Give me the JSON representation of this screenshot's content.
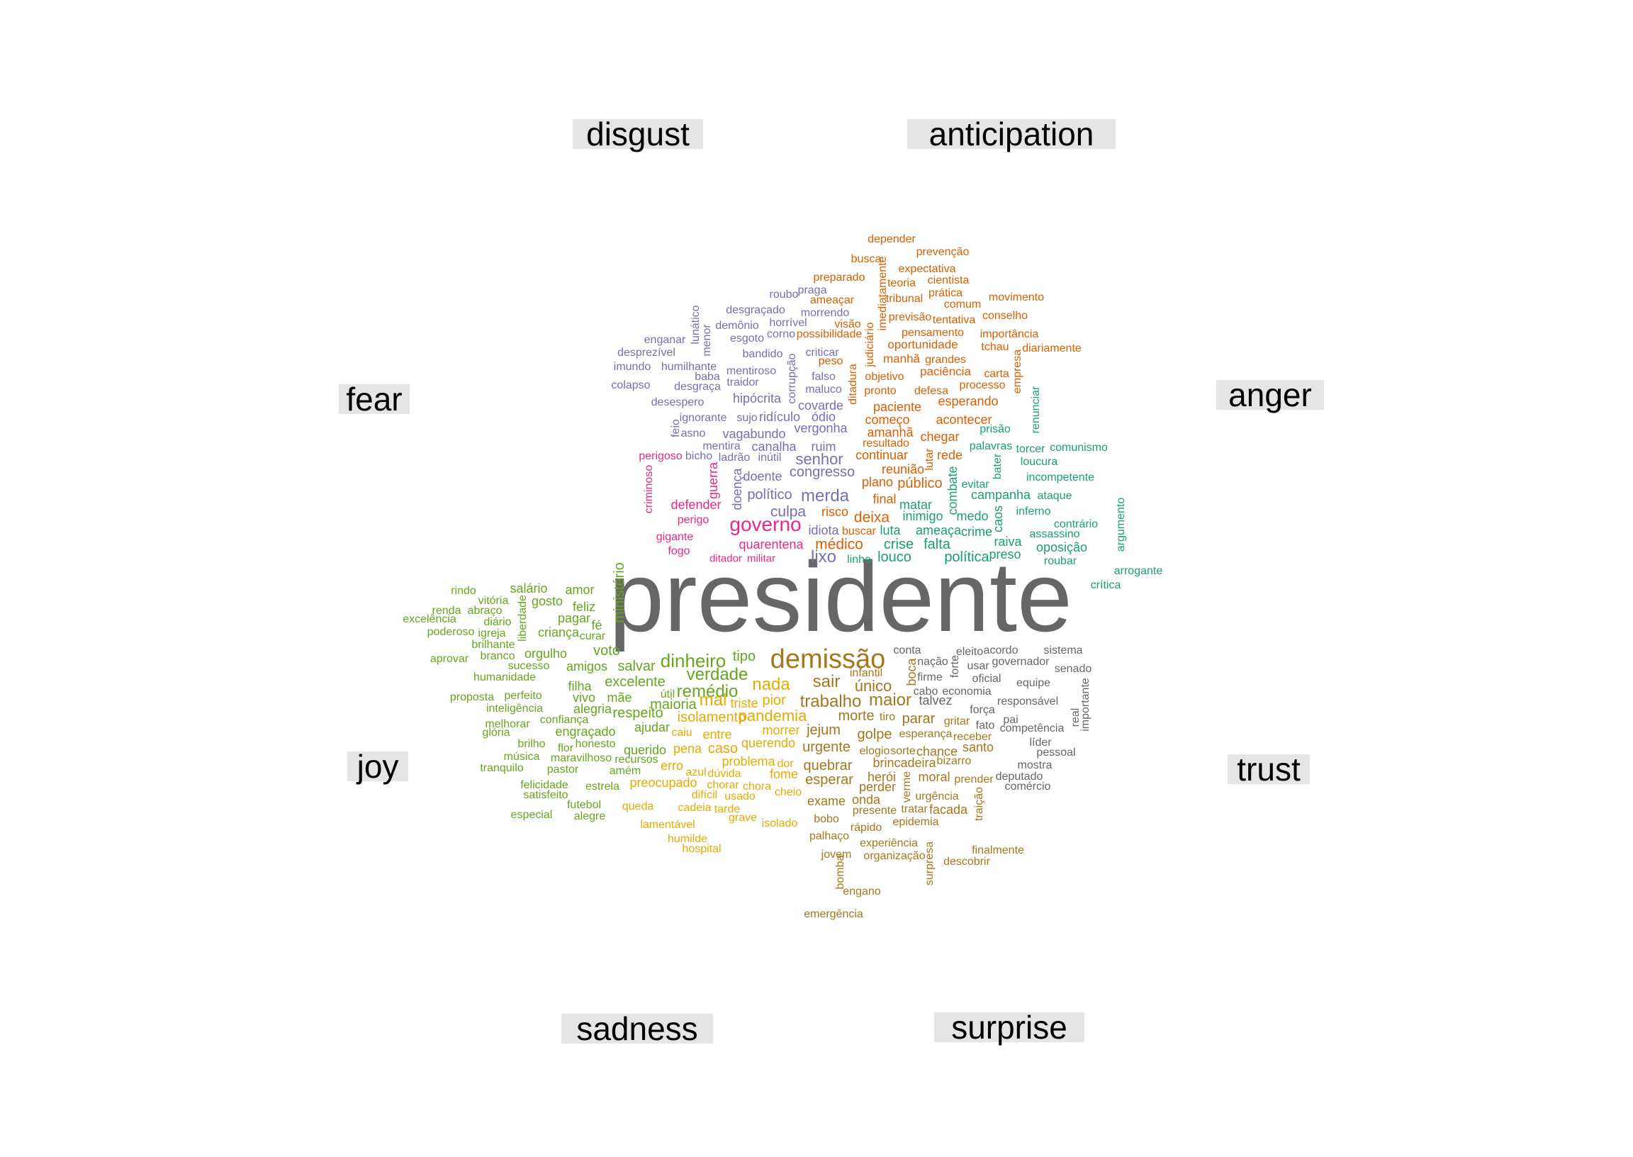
{
  "categories": {
    "disgust": "disgust",
    "anticipation": "anticipation",
    "fear": "fear",
    "anger": "anger",
    "joy": "joy",
    "trust": "trust",
    "sadness": "sadness",
    "surprise": "surprise"
  },
  "colors": {
    "center": "#666666",
    "anticipation": "#d95f02",
    "disgust": "#7570b3",
    "fear": "#e7298a",
    "anger": "#1b9e77",
    "joy": "#66a61e",
    "sadness": "#e6ab02",
    "surprise": "#a6761d",
    "trust": "#666666"
  },
  "words": [
    {
      "t": "presidente",
      "c": "center"
    },
    {
      "t": "depender",
      "c": "anticipation"
    },
    {
      "t": "busca",
      "c": "anticipation"
    },
    {
      "t": "prevenção",
      "c": "anticipation"
    },
    {
      "t": "preparado",
      "c": "anticipation"
    },
    {
      "t": "expectativa",
      "c": "anticipation"
    },
    {
      "t": "teoria",
      "c": "anticipation"
    },
    {
      "t": "cientista",
      "c": "anticipation"
    },
    {
      "t": "imediatamente",
      "c": "anticipation"
    },
    {
      "t": "ameaçar",
      "c": "anticipation"
    },
    {
      "t": "tribunal",
      "c": "anticipation"
    },
    {
      "t": "prática",
      "c": "anticipation"
    },
    {
      "t": "movimento",
      "c": "anticipation"
    },
    {
      "t": "comum",
      "c": "anticipation"
    },
    {
      "t": "visão",
      "c": "anticipation"
    },
    {
      "t": "previsão",
      "c": "anticipation"
    },
    {
      "t": "tentativa",
      "c": "anticipation"
    },
    {
      "t": "conselho",
      "c": "anticipation"
    },
    {
      "t": "possibilidade",
      "c": "anticipation"
    },
    {
      "t": "pensamento",
      "c": "anticipation"
    },
    {
      "t": "importância",
      "c": "anticipation"
    },
    {
      "t": "judiciário",
      "c": "anticipation"
    },
    {
      "t": "oportunidade",
      "c": "anticipation"
    },
    {
      "t": "tchau",
      "c": "anticipation"
    },
    {
      "t": "diariamente",
      "c": "anticipation"
    },
    {
      "t": "peso",
      "c": "anticipation"
    },
    {
      "t": "manhã",
      "c": "anticipation"
    },
    {
      "t": "grandes",
      "c": "anticipation"
    },
    {
      "t": "ditadura",
      "c": "anticipation"
    },
    {
      "t": "objetivo",
      "c": "anticipation"
    },
    {
      "t": "paciência",
      "c": "anticipation"
    },
    {
      "t": "carta",
      "c": "anticipation"
    },
    {
      "t": "empresa",
      "c": "anticipation"
    },
    {
      "t": "pronto",
      "c": "anticipation"
    },
    {
      "t": "defesa",
      "c": "anticipation"
    },
    {
      "t": "processo",
      "c": "anticipation"
    },
    {
      "t": "paciente",
      "c": "anticipation"
    },
    {
      "t": "esperando",
      "c": "anticipation"
    },
    {
      "t": "começo",
      "c": "anticipation"
    },
    {
      "t": "acontecer",
      "c": "anticipation"
    },
    {
      "t": "amanhã",
      "c": "anticipation"
    },
    {
      "t": "chegar",
      "c": "anticipation"
    },
    {
      "t": "resultado",
      "c": "anticipation"
    },
    {
      "t": "continuar",
      "c": "anticipation"
    },
    {
      "t": "lutar",
      "c": "anticipation"
    },
    {
      "t": "rede",
      "c": "anticipation"
    },
    {
      "t": "reunião",
      "c": "anticipation"
    },
    {
      "t": "plano",
      "c": "anticipation"
    },
    {
      "t": "público",
      "c": "anticipation"
    },
    {
      "t": "final",
      "c": "anticipation"
    },
    {
      "t": "risco",
      "c": "anticipation"
    },
    {
      "t": "deixa",
      "c": "anticipation"
    },
    {
      "t": "buscar",
      "c": "anticipation"
    },
    {
      "t": "médico",
      "c": "anticipation"
    },
    {
      "t": "lunático",
      "c": "disgust"
    },
    {
      "t": "roubo",
      "c": "disgust"
    },
    {
      "t": "praga",
      "c": "disgust"
    },
    {
      "t": "desgraçado",
      "c": "disgust"
    },
    {
      "t": "morrendo",
      "c": "disgust"
    },
    {
      "t": "demônio",
      "c": "disgust"
    },
    {
      "t": "horrível",
      "c": "disgust"
    },
    {
      "t": "menor",
      "c": "disgust"
    },
    {
      "t": "enganar",
      "c": "disgust"
    },
    {
      "t": "esgoto",
      "c": "disgust"
    },
    {
      "t": "corno",
      "c": "disgust"
    },
    {
      "t": "desprezível",
      "c": "disgust"
    },
    {
      "t": "bandido",
      "c": "disgust"
    },
    {
      "t": "criticar",
      "c": "disgust"
    },
    {
      "t": "imundo",
      "c": "disgust"
    },
    {
      "t": "humilhante",
      "c": "disgust"
    },
    {
      "t": "corrupção",
      "c": "disgust"
    },
    {
      "t": "mentiroso",
      "c": "disgust"
    },
    {
      "t": "baba",
      "c": "disgust"
    },
    {
      "t": "falso",
      "c": "disgust"
    },
    {
      "t": "colapso",
      "c": "disgust"
    },
    {
      "t": "desgraça",
      "c": "disgust"
    },
    {
      "t": "traidor",
      "c": "disgust"
    },
    {
      "t": "maluco",
      "c": "disgust"
    },
    {
      "t": "desespero",
      "c": "disgust"
    },
    {
      "t": "hipócrita",
      "c": "disgust"
    },
    {
      "t": "covarde",
      "c": "disgust"
    },
    {
      "t": "ignorante",
      "c": "disgust"
    },
    {
      "t": "sujo",
      "c": "disgust"
    },
    {
      "t": "ridículo",
      "c": "disgust"
    },
    {
      "t": "ódio",
      "c": "disgust"
    },
    {
      "t": "feio",
      "c": "disgust"
    },
    {
      "t": "asno",
      "c": "disgust"
    },
    {
      "t": "vagabundo",
      "c": "disgust"
    },
    {
      "t": "vergonha",
      "c": "disgust"
    },
    {
      "t": "mentira",
      "c": "disgust"
    },
    {
      "t": "canalha",
      "c": "disgust"
    },
    {
      "t": "ruim",
      "c": "disgust"
    },
    {
      "t": "bicho",
      "c": "disgust"
    },
    {
      "t": "ladrão",
      "c": "disgust"
    },
    {
      "t": "inútil",
      "c": "disgust"
    },
    {
      "t": "senhor",
      "c": "disgust"
    },
    {
      "t": "doença",
      "c": "disgust"
    },
    {
      "t": "doente",
      "c": "disgust"
    },
    {
      "t": "congresso",
      "c": "disgust"
    },
    {
      "t": "político",
      "c": "disgust"
    },
    {
      "t": "merda",
      "c": "disgust"
    },
    {
      "t": "culpa",
      "c": "disgust"
    },
    {
      "t": "idiota",
      "c": "disgust"
    },
    {
      "t": "lixo",
      "c": "disgust"
    },
    {
      "t": "perigoso",
      "c": "fear"
    },
    {
      "t": "criminoso",
      "c": "fear"
    },
    {
      "t": "guerra",
      "c": "fear"
    },
    {
      "t": "defender",
      "c": "fear"
    },
    {
      "t": "perigo",
      "c": "fear"
    },
    {
      "t": "governo",
      "c": "fear"
    },
    {
      "t": "gigante",
      "c": "fear"
    },
    {
      "t": "quarentena",
      "c": "fear"
    },
    {
      "t": "fogo",
      "c": "fear"
    },
    {
      "t": "ditador",
      "c": "fear"
    },
    {
      "t": "militar",
      "c": "fear"
    },
    {
      "t": "renunciar",
      "c": "anger"
    },
    {
      "t": "prisão",
      "c": "anger"
    },
    {
      "t": "palavras",
      "c": "anger"
    },
    {
      "t": "torcer",
      "c": "anger"
    },
    {
      "t": "comunismo",
      "c": "anger"
    },
    {
      "t": "loucura",
      "c": "anger"
    },
    {
      "t": "bater",
      "c": "anger"
    },
    {
      "t": "combate",
      "c": "anger"
    },
    {
      "t": "incompetente",
      "c": "anger"
    },
    {
      "t": "evitar",
      "c": "anger"
    },
    {
      "t": "campanha",
      "c": "anger"
    },
    {
      "t": "ataque",
      "c": "anger"
    },
    {
      "t": "argumento",
      "c": "anger"
    },
    {
      "t": "matar",
      "c": "anger"
    },
    {
      "t": "inferno",
      "c": "anger"
    },
    {
      "t": "caos",
      "c": "anger"
    },
    {
      "t": "inimigo",
      "c": "anger"
    },
    {
      "t": "medo",
      "c": "anger"
    },
    {
      "t": "contrário",
      "c": "anger"
    },
    {
      "t": "ameaça",
      "c": "anger"
    },
    {
      "t": "crime",
      "c": "anger"
    },
    {
      "t": "assassino",
      "c": "anger"
    },
    {
      "t": "luta",
      "c": "anger"
    },
    {
      "t": "raiva",
      "c": "anger"
    },
    {
      "t": "oposição",
      "c": "anger"
    },
    {
      "t": "crise",
      "c": "anger"
    },
    {
      "t": "falta",
      "c": "anger"
    },
    {
      "t": "preso",
      "c": "anger"
    },
    {
      "t": "louco",
      "c": "anger"
    },
    {
      "t": "política",
      "c": "anger"
    },
    {
      "t": "linha",
      "c": "anger"
    },
    {
      "t": "roubar",
      "c": "anger"
    },
    {
      "t": "arrogante",
      "c": "anger"
    },
    {
      "t": "crítica",
      "c": "anger"
    },
    {
      "t": "ministério",
      "c": "joy"
    },
    {
      "t": "rindo",
      "c": "joy"
    },
    {
      "t": "salário",
      "c": "joy"
    },
    {
      "t": "amor",
      "c": "joy"
    },
    {
      "t": "vitória",
      "c": "joy"
    },
    {
      "t": "gosto",
      "c": "joy"
    },
    {
      "t": "renda",
      "c": "joy"
    },
    {
      "t": "abraço",
      "c": "joy"
    },
    {
      "t": "liberdade",
      "c": "joy"
    },
    {
      "t": "feliz",
      "c": "joy"
    },
    {
      "t": "excelência",
      "c": "joy"
    },
    {
      "t": "diário",
      "c": "joy"
    },
    {
      "t": "pagar",
      "c": "joy"
    },
    {
      "t": "fé",
      "c": "joy"
    },
    {
      "t": "poderoso",
      "c": "joy"
    },
    {
      "t": "igreja",
      "c": "joy"
    },
    {
      "t": "criança",
      "c": "joy"
    },
    {
      "t": "curar",
      "c": "joy"
    },
    {
      "t": "brilhante",
      "c": "joy"
    },
    {
      "t": "branco",
      "c": "joy"
    },
    {
      "t": "orgulho",
      "c": "joy"
    },
    {
      "t": "voto",
      "c": "joy"
    },
    {
      "t": "aprovar",
      "c": "joy"
    },
    {
      "t": "sucesso",
      "c": "joy"
    },
    {
      "t": "amigos",
      "c": "joy"
    },
    {
      "t": "salvar",
      "c": "joy"
    },
    {
      "t": "dinheiro",
      "c": "joy"
    },
    {
      "t": "tipo",
      "c": "joy"
    },
    {
      "t": "humanidade",
      "c": "joy"
    },
    {
      "t": "verdade",
      "c": "joy"
    },
    {
      "t": "excelente",
      "c": "joy"
    },
    {
      "t": "filha",
      "c": "joy"
    },
    {
      "t": "útil",
      "c": "joy"
    },
    {
      "t": "remédio",
      "c": "joy"
    },
    {
      "t": "proposta",
      "c": "joy"
    },
    {
      "t": "perfeito",
      "c": "joy"
    },
    {
      "t": "vivo",
      "c": "joy"
    },
    {
      "t": "mãe",
      "c": "joy"
    },
    {
      "t": "maioria",
      "c": "joy"
    },
    {
      "t": "inteligência",
      "c": "joy"
    },
    {
      "t": "alegria",
      "c": "joy"
    },
    {
      "t": "respeito",
      "c": "joy"
    },
    {
      "t": "confiança",
      "c": "joy"
    },
    {
      "t": "melhorar",
      "c": "joy"
    },
    {
      "t": "engraçado",
      "c": "joy"
    },
    {
      "t": "ajudar",
      "c": "joy"
    },
    {
      "t": "glória",
      "c": "joy"
    },
    {
      "t": "brilho",
      "c": "joy"
    },
    {
      "t": "honesto",
      "c": "joy"
    },
    {
      "t": "flor",
      "c": "joy"
    },
    {
      "t": "querido",
      "c": "joy"
    },
    {
      "t": "música",
      "c": "joy"
    },
    {
      "t": "maravilhoso",
      "c": "joy"
    },
    {
      "t": "recursos",
      "c": "joy"
    },
    {
      "t": "tranquilo",
      "c": "joy"
    },
    {
      "t": "pastor",
      "c": "joy"
    },
    {
      "t": "amém",
      "c": "joy"
    },
    {
      "t": "felicidade",
      "c": "joy"
    },
    {
      "t": "satisfeito",
      "c": "joy"
    },
    {
      "t": "estrela",
      "c": "joy"
    },
    {
      "t": "futebol",
      "c": "joy"
    },
    {
      "t": "especial",
      "c": "joy"
    },
    {
      "t": "alegre",
      "c": "joy"
    },
    {
      "t": "nada",
      "c": "sadness"
    },
    {
      "t": "mal",
      "c": "sadness"
    },
    {
      "t": "triste",
      "c": "sadness"
    },
    {
      "t": "pior",
      "c": "sadness"
    },
    {
      "t": "isolamento",
      "c": "sadness"
    },
    {
      "t": "pandemia",
      "c": "sadness"
    },
    {
      "t": "morrer",
      "c": "sadness"
    },
    {
      "t": "caiu",
      "c": "sadness"
    },
    {
      "t": "entre",
      "c": "sadness"
    },
    {
      "t": "pena",
      "c": "sadness"
    },
    {
      "t": "caso",
      "c": "sadness"
    },
    {
      "t": "querendo",
      "c": "sadness"
    },
    {
      "t": "erro",
      "c": "sadness"
    },
    {
      "t": "problema",
      "c": "sadness"
    },
    {
      "t": "dor",
      "c": "sadness"
    },
    {
      "t": "azul",
      "c": "sadness"
    },
    {
      "t": "dúvida",
      "c": "sadness"
    },
    {
      "t": "fome",
      "c": "sadness"
    },
    {
      "t": "preocupado",
      "c": "sadness"
    },
    {
      "t": "chorar",
      "c": "sadness"
    },
    {
      "t": "chora",
      "c": "sadness"
    },
    {
      "t": "difícil",
      "c": "sadness"
    },
    {
      "t": "usado",
      "c": "sadness"
    },
    {
      "t": "cheio",
      "c": "sadness"
    },
    {
      "t": "queda",
      "c": "sadness"
    },
    {
      "t": "cadeia",
      "c": "sadness"
    },
    {
      "t": "tarde",
      "c": "sadness"
    },
    {
      "t": "grave",
      "c": "sadness"
    },
    {
      "t": "isolado",
      "c": "sadness"
    },
    {
      "t": "lamentável",
      "c": "sadness"
    },
    {
      "t": "humilde",
      "c": "sadness"
    },
    {
      "t": "hospital",
      "c": "sadness"
    },
    {
      "t": "demissão",
      "c": "surprise"
    },
    {
      "t": "sair",
      "c": "surprise"
    },
    {
      "t": "trabalho",
      "c": "surprise"
    },
    {
      "t": "maior",
      "c": "surprise"
    },
    {
      "t": "único",
      "c": "surprise"
    },
    {
      "t": "boca",
      "c": "surprise"
    },
    {
      "t": "infantil",
      "c": "surprise"
    },
    {
      "t": "jejum",
      "c": "surprise"
    },
    {
      "t": "morte",
      "c": "surprise"
    },
    {
      "t": "tiro",
      "c": "surprise"
    },
    {
      "t": "parar",
      "c": "surprise"
    },
    {
      "t": "golpe",
      "c": "surprise"
    },
    {
      "t": "urgente",
      "c": "surprise"
    },
    {
      "t": "elogio",
      "c": "surprise"
    },
    {
      "t": "sorte",
      "c": "surprise"
    },
    {
      "t": "quebrar",
      "c": "surprise"
    },
    {
      "t": "brincadeira",
      "c": "surprise"
    },
    {
      "t": "esperar",
      "c": "surprise"
    },
    {
      "t": "herói",
      "c": "surprise"
    },
    {
      "t": "moral",
      "c": "surprise"
    },
    {
      "t": "perder",
      "c": "surprise"
    },
    {
      "t": "verme",
      "c": "surprise"
    },
    {
      "t": "exame",
      "c": "surprise"
    },
    {
      "t": "onda",
      "c": "surprise"
    },
    {
      "t": "presente",
      "c": "surprise"
    },
    {
      "t": "tratar",
      "c": "surprise"
    },
    {
      "t": "facada",
      "c": "surprise"
    },
    {
      "t": "traição",
      "c": "surprise"
    },
    {
      "t": "bobo",
      "c": "surprise"
    },
    {
      "t": "rápido",
      "c": "surprise"
    },
    {
      "t": "epidemia",
      "c": "surprise"
    },
    {
      "t": "palhaço",
      "c": "surprise"
    },
    {
      "t": "experiência",
      "c": "surprise"
    },
    {
      "t": "surpresa",
      "c": "surprise"
    },
    {
      "t": "jovem",
      "c": "surprise"
    },
    {
      "t": "organização",
      "c": "surprise"
    },
    {
      "t": "descobrir",
      "c": "surprise"
    },
    {
      "t": "finalmente",
      "c": "surprise"
    },
    {
      "t": "bomba",
      "c": "surprise"
    },
    {
      "t": "engano",
      "c": "surprise"
    },
    {
      "t": "emergência",
      "c": "surprise"
    },
    {
      "t": "urgência",
      "c": "surprise"
    },
    {
      "t": "esperança",
      "c": "surprise"
    },
    {
      "t": "gritar",
      "c": "surprise"
    },
    {
      "t": "chance",
      "c": "surprise"
    },
    {
      "t": "santo",
      "c": "surprise"
    },
    {
      "t": "receber",
      "c": "surprise"
    },
    {
      "t": "bizarro",
      "c": "surprise"
    },
    {
      "t": "prender",
      "c": "surprise"
    },
    {
      "t": "conta",
      "c": "trust"
    },
    {
      "t": "eleito",
      "c": "trust"
    },
    {
      "t": "acordo",
      "c": "trust"
    },
    {
      "t": "sistema",
      "c": "trust"
    },
    {
      "t": "nação",
      "c": "trust"
    },
    {
      "t": "forte",
      "c": "trust"
    },
    {
      "t": "usar",
      "c": "trust"
    },
    {
      "t": "governador",
      "c": "trust"
    },
    {
      "t": "senado",
      "c": "trust"
    },
    {
      "t": "firme",
      "c": "trust"
    },
    {
      "t": "oficial",
      "c": "trust"
    },
    {
      "t": "equipe",
      "c": "trust"
    },
    {
      "t": "cabo",
      "c": "trust"
    },
    {
      "t": "economia",
      "c": "trust"
    },
    {
      "t": "talvez",
      "c": "trust"
    },
    {
      "t": "responsável",
      "c": "trust"
    },
    {
      "t": "importante",
      "c": "trust"
    },
    {
      "t": "real",
      "c": "trust"
    },
    {
      "t": "força",
      "c": "trust"
    },
    {
      "t": "pai",
      "c": "trust"
    },
    {
      "t": "fato",
      "c": "trust"
    },
    {
      "t": "competência",
      "c": "trust"
    },
    {
      "t": "líder",
      "c": "trust"
    },
    {
      "t": "pessoal",
      "c": "trust"
    },
    {
      "t": "mostra",
      "c": "trust"
    },
    {
      "t": "deputado",
      "c": "trust"
    },
    {
      "t": "comércio",
      "c": "trust"
    }
  ]
}
